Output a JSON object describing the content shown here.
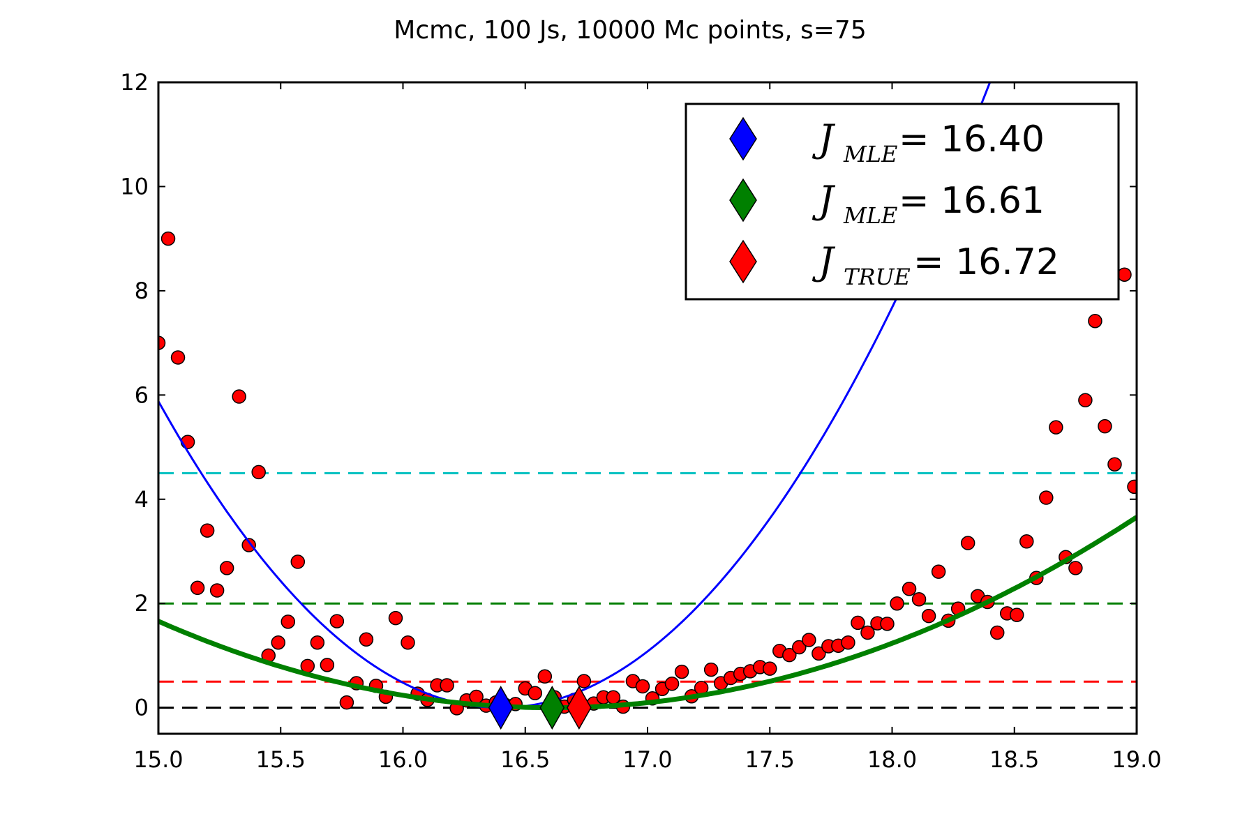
{
  "chart_data": {
    "type": "scatter",
    "title": "Mcmc, 100 Js, 10000 Mc points, s=75",
    "xlabel": "",
    "ylabel": "",
    "xlim": [
      15.0,
      19.0
    ],
    "ylim": [
      -0.5,
      12
    ],
    "xticks": [
      "15.0",
      "15.5",
      "16.0",
      "16.5",
      "17.0",
      "17.5",
      "18.0",
      "18.5",
      "19.0"
    ],
    "yticks": [
      "0",
      "2",
      "4",
      "6",
      "8",
      "10",
      "12"
    ],
    "grid": false,
    "legend_position": "top-right",
    "colors": {
      "points": "#ff0000",
      "blue_fit": "#0000ff",
      "green_fit": "#008000",
      "cyan_level": "#00bfbf",
      "green_level": "#008000",
      "red_level": "#ff0000",
      "black_level": "#000000"
    },
    "points": [
      {
        "x": 15.0,
        "y": 7.0
      },
      {
        "x": 15.04,
        "y": 9.0
      },
      {
        "x": 15.08,
        "y": 6.72
      },
      {
        "x": 15.12,
        "y": 5.1
      },
      {
        "x": 15.16,
        "y": 2.3
      },
      {
        "x": 15.2,
        "y": 3.4
      },
      {
        "x": 15.24,
        "y": 2.25
      },
      {
        "x": 15.28,
        "y": 2.68
      },
      {
        "x": 15.33,
        "y": 5.97
      },
      {
        "x": 15.37,
        "y": 3.12
      },
      {
        "x": 15.41,
        "y": 4.52
      },
      {
        "x": 15.45,
        "y": 1.0
      },
      {
        "x": 15.49,
        "y": 1.25
      },
      {
        "x": 15.53,
        "y": 1.65
      },
      {
        "x": 15.57,
        "y": 2.8
      },
      {
        "x": 15.61,
        "y": 0.8
      },
      {
        "x": 15.65,
        "y": 1.25
      },
      {
        "x": 15.69,
        "y": 0.82
      },
      {
        "x": 15.73,
        "y": 1.66
      },
      {
        "x": 15.77,
        "y": 0.1
      },
      {
        "x": 15.81,
        "y": 0.47
      },
      {
        "x": 15.85,
        "y": 1.31
      },
      {
        "x": 15.89,
        "y": 0.42
      },
      {
        "x": 15.93,
        "y": 0.21
      },
      {
        "x": 15.97,
        "y": 1.72
      },
      {
        "x": 16.02,
        "y": 1.25
      },
      {
        "x": 16.06,
        "y": 0.27
      },
      {
        "x": 16.1,
        "y": 0.15
      },
      {
        "x": 16.14,
        "y": 0.43
      },
      {
        "x": 16.18,
        "y": 0.43
      },
      {
        "x": 16.22,
        "y": -0.01
      },
      {
        "x": 16.26,
        "y": 0.14
      },
      {
        "x": 16.3,
        "y": 0.21
      },
      {
        "x": 16.34,
        "y": 0.04
      },
      {
        "x": 16.38,
        "y": 0.1
      },
      {
        "x": 16.42,
        "y": 0.05
      },
      {
        "x": 16.46,
        "y": 0.07
      },
      {
        "x": 16.5,
        "y": 0.37
      },
      {
        "x": 16.54,
        "y": 0.28
      },
      {
        "x": 16.58,
        "y": 0.6
      },
      {
        "x": 16.62,
        "y": 0.2
      },
      {
        "x": 16.66,
        "y": 0.02
      },
      {
        "x": 16.7,
        "y": 0.15
      },
      {
        "x": 16.74,
        "y": 0.51
      },
      {
        "x": 16.78,
        "y": 0.08
      },
      {
        "x": 16.82,
        "y": 0.2
      },
      {
        "x": 16.86,
        "y": 0.2
      },
      {
        "x": 16.9,
        "y": 0.02
      },
      {
        "x": 16.94,
        "y": 0.51
      },
      {
        "x": 16.98,
        "y": 0.41
      },
      {
        "x": 17.02,
        "y": 0.18
      },
      {
        "x": 17.06,
        "y": 0.36
      },
      {
        "x": 17.1,
        "y": 0.46
      },
      {
        "x": 17.14,
        "y": 0.69
      },
      {
        "x": 17.18,
        "y": 0.22
      },
      {
        "x": 17.22,
        "y": 0.38
      },
      {
        "x": 17.26,
        "y": 0.73
      },
      {
        "x": 17.3,
        "y": 0.47
      },
      {
        "x": 17.34,
        "y": 0.57
      },
      {
        "x": 17.38,
        "y": 0.65
      },
      {
        "x": 17.42,
        "y": 0.7
      },
      {
        "x": 17.46,
        "y": 0.78
      },
      {
        "x": 17.5,
        "y": 0.75
      },
      {
        "x": 17.54,
        "y": 1.09
      },
      {
        "x": 17.58,
        "y": 1.01
      },
      {
        "x": 17.62,
        "y": 1.16
      },
      {
        "x": 17.66,
        "y": 1.3
      },
      {
        "x": 17.7,
        "y": 1.04
      },
      {
        "x": 17.74,
        "y": 1.18
      },
      {
        "x": 17.78,
        "y": 1.19
      },
      {
        "x": 17.82,
        "y": 1.25
      },
      {
        "x": 17.86,
        "y": 1.63
      },
      {
        "x": 17.9,
        "y": 1.44
      },
      {
        "x": 17.94,
        "y": 1.62
      },
      {
        "x": 17.98,
        "y": 1.61
      },
      {
        "x": 18.02,
        "y": 2.0
      },
      {
        "x": 18.07,
        "y": 2.28
      },
      {
        "x": 18.11,
        "y": 2.08
      },
      {
        "x": 18.15,
        "y": 1.76
      },
      {
        "x": 18.19,
        "y": 2.61
      },
      {
        "x": 18.23,
        "y": 1.67
      },
      {
        "x": 18.27,
        "y": 1.9
      },
      {
        "x": 18.31,
        "y": 3.16
      },
      {
        "x": 18.35,
        "y": 2.14
      },
      {
        "x": 18.39,
        "y": 2.03
      },
      {
        "x": 18.43,
        "y": 1.44
      },
      {
        "x": 18.47,
        "y": 1.81
      },
      {
        "x": 18.51,
        "y": 1.78
      },
      {
        "x": 18.55,
        "y": 3.19
      },
      {
        "x": 18.59,
        "y": 2.49
      },
      {
        "x": 18.63,
        "y": 4.03
      },
      {
        "x": 18.67,
        "y": 5.38
      },
      {
        "x": 18.71,
        "y": 2.89
      },
      {
        "x": 18.75,
        "y": 2.68
      },
      {
        "x": 18.79,
        "y": 5.9
      },
      {
        "x": 18.83,
        "y": 7.42
      },
      {
        "x": 18.87,
        "y": 5.4
      },
      {
        "x": 18.91,
        "y": 4.67
      },
      {
        "x": 18.95,
        "y": 8.31
      },
      {
        "x": 18.99,
        "y": 4.24
      }
    ],
    "fits": [
      {
        "color": "#0000ff",
        "vertex_x": 16.4,
        "coef": 3.0,
        "power": 2,
        "width": 3
      },
      {
        "color": "#008000",
        "vertex_x": 16.61,
        "coef": 0.64,
        "power": 2,
        "width": 7
      }
    ],
    "hlines": [
      {
        "y": 4.5,
        "color": "#00bfbf"
      },
      {
        "y": 2.0,
        "color": "#008000"
      },
      {
        "y": 0.5,
        "color": "#ff0000"
      },
      {
        "y": 0.0,
        "color": "#000000"
      }
    ],
    "markers": [
      {
        "x": 16.4,
        "y": 0.0,
        "color": "#0000ff"
      },
      {
        "x": 16.61,
        "y": 0.0,
        "color": "#008000"
      },
      {
        "x": 16.72,
        "y": 0.0,
        "color": "#ff0000"
      }
    ],
    "legend": [
      {
        "symbol": "J",
        "subscript": "MLE",
        "value": "= 16.40",
        "color": "#0000ff"
      },
      {
        "symbol": "J",
        "subscript": "MLE",
        "value": "= 16.61",
        "color": "#008000"
      },
      {
        "symbol": "J",
        "subscript": "TRUE",
        "value": "= 16.72",
        "color": "#ff0000"
      }
    ]
  }
}
